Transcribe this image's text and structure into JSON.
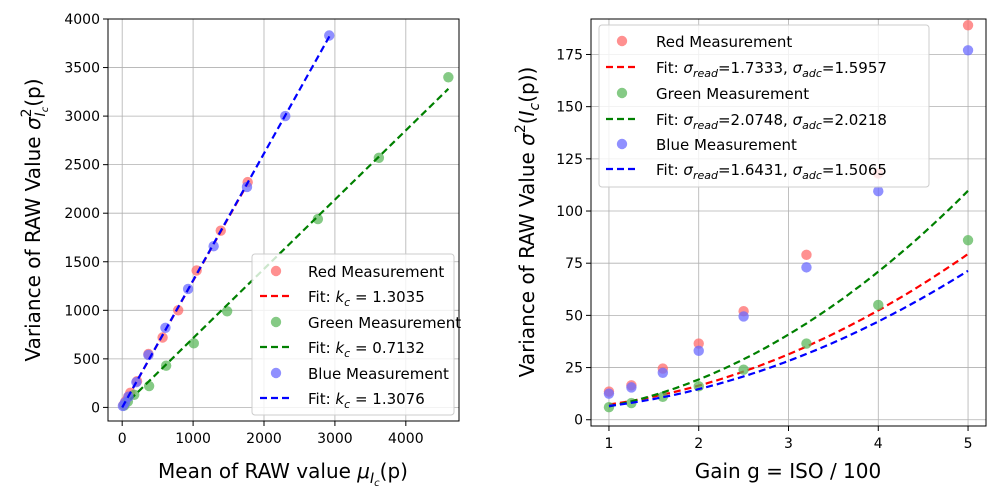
{
  "chart_data": [
    {
      "type": "scatter",
      "xlabel": "Mean of RAW value",
      "xlabel_symbol": "μ",
      "xlabel_sub": "I",
      "xlabel_subsub": "c",
      "xlabel_arg": "(p)",
      "ylabel": "Variance of RAW Value",
      "ylabel_symbol": "σ",
      "ylabel_sup": "2",
      "ylabel_sub": "I",
      "ylabel_subsub": "c",
      "ylabel_arg": "(p)",
      "xlim": [
        -200,
        4750
      ],
      "ylim": [
        -140,
        4000
      ],
      "xticks": [
        "0",
        "1000",
        "2000",
        "3000",
        "4000"
      ],
      "xtick_values": [
        0,
        1000,
        2000,
        3000,
        4000
      ],
      "yticks": [
        "0",
        "500",
        "1000",
        "1500",
        "2000",
        "2500",
        "3000",
        "3500",
        "4000"
      ],
      "ytick_values": [
        0,
        500,
        1000,
        1500,
        2000,
        2500,
        3000,
        3500,
        4000
      ],
      "grid": true,
      "legend_position": "lower-right",
      "series": [
        {
          "name": "Red Measurement",
          "color": "#ff6b6b",
          "x": [
            20,
            45,
            85,
            115,
            210,
            370,
            570,
            790,
            1050,
            1390,
            1770
          ],
          "y": [
            25,
            60,
            110,
            150,
            270,
            550,
            720,
            1000,
            1410,
            1820,
            2320
          ]
        },
        {
          "name": "Fit: k_c = 1.3035",
          "fit_label": "Fit: ",
          "fit_var": "k",
          "fit_sub": "c",
          "fit_value": " = 1.3035",
          "color": "#ff0000",
          "slope": 1.3035,
          "x_range": [
            0,
            1780
          ]
        },
        {
          "name": "Green Measurement",
          "color": "#5cb85c",
          "x": [
            30,
            80,
            170,
            380,
            620,
            1010,
            1480,
            2760,
            3620,
            4600
          ],
          "y": [
            20,
            60,
            130,
            220,
            430,
            660,
            990,
            1940,
            2570,
            3400
          ]
        },
        {
          "name": "Fit: k_c = 0.7132",
          "fit_label": "Fit: ",
          "fit_var": "k",
          "fit_sub": "c",
          "fit_value": " = 0.7132",
          "color": "#008000",
          "slope": 0.7132,
          "x_range": [
            0,
            4600
          ]
        },
        {
          "name": "Blue Measurement",
          "color": "#6b6bff",
          "x": [
            10,
            40,
            90,
            200,
            370,
            610,
            930,
            1290,
            1760,
            2300,
            2920
          ],
          "y": [
            15,
            50,
            110,
            260,
            540,
            820,
            1220,
            1660,
            2270,
            3000,
            3830
          ]
        },
        {
          "name": "Fit: k_c = 1.3076",
          "fit_label": "Fit: ",
          "fit_var": "k",
          "fit_sub": "c",
          "fit_value": " = 1.3076",
          "color": "#0000ff",
          "slope": 1.3076,
          "x_range": [
            0,
            2930
          ]
        }
      ]
    },
    {
      "type": "scatter",
      "xlabel": "Gain g = ISO / 100",
      "ylabel": "Variance of RAW Value",
      "ylabel_symbol": "σ",
      "ylabel_sup": "2",
      "ylabel_paren_open": "(",
      "ylabel_sub": "I",
      "ylabel_subsub": "c",
      "ylabel_arg": "(p))",
      "xlim": [
        0.8,
        5.2
      ],
      "ylim": [
        -3,
        192
      ],
      "xticks": [
        "1",
        "2",
        "3",
        "4",
        "5"
      ],
      "xtick_values": [
        1,
        2,
        3,
        4,
        5
      ],
      "yticks": [
        "0",
        "25",
        "50",
        "75",
        "100",
        "125",
        "150",
        "175"
      ],
      "ytick_values": [
        0,
        25,
        50,
        75,
        100,
        125,
        150,
        175
      ],
      "grid": true,
      "legend_position": "upper-left",
      "series": [
        {
          "name": "Red Measurement",
          "color": "#ff6b6b",
          "x": [
            1.0,
            1.25,
            1.6,
            2.0,
            2.5,
            3.2,
            4.0,
            5.0
          ],
          "y": [
            13.5,
            16.5,
            24.5,
            36.5,
            52,
            79,
            118,
            189
          ]
        },
        {
          "name": "Fit: σ_read=1.7333, σ_adc=1.5957",
          "fit_label": "Fit: ",
          "sigma_read": "1.7333",
          "sigma_adc": "1.5957",
          "color": "#ff0000",
          "sr": 1.7333,
          "sa": 1.5957,
          "k": 1.3035
        },
        {
          "name": "Green Measurement",
          "color": "#5cb85c",
          "x": [
            1.0,
            1.25,
            1.6,
            2.0,
            2.5,
            3.2,
            4.0,
            5.0
          ],
          "y": [
            6,
            8,
            11,
            16,
            24,
            36.5,
            55,
            86
          ]
        },
        {
          "name": "Fit: σ_read=2.0748, σ_adc=2.0218",
          "fit_label": "Fit: ",
          "sigma_read": "2.0748",
          "sigma_adc": "2.0218",
          "color": "#008000",
          "sr": 2.0748,
          "sa": 2.0218,
          "k": 0.7132
        },
        {
          "name": "Blue Measurement",
          "color": "#6b6bff",
          "x": [
            1.0,
            1.25,
            1.6,
            2.0,
            2.5,
            3.2,
            4.0,
            5.0
          ],
          "y": [
            12.5,
            15.5,
            22.5,
            33,
            49.5,
            73,
            109.5,
            177
          ]
        },
        {
          "name": "Fit: σ_read=1.6431, σ_adc=1.5065",
          "fit_label": "Fit: ",
          "sigma_read": "1.6431",
          "sigma_adc": "1.5065",
          "color": "#0000ff",
          "sr": 1.6431,
          "sa": 1.5065,
          "k": 1.3076
        }
      ]
    }
  ]
}
